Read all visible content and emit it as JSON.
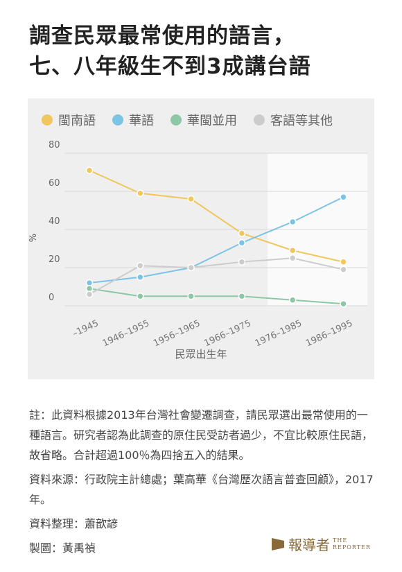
{
  "title_lines": [
    "調查民眾最常使用的語言，",
    "七、八年級生不到3成講台語"
  ],
  "chart_data": {
    "type": "line",
    "x_label": "民眾出生年",
    "y_label": "%",
    "categories": [
      "–1945",
      "1946–1955",
      "1956–1965",
      "1966–1975",
      "1976–1985",
      "1986–1995"
    ],
    "series": [
      {
        "name": "閩南語",
        "color": "#f0c75e",
        "values": [
          71,
          59,
          56,
          38,
          29,
          23
        ]
      },
      {
        "name": "華語",
        "color": "#7cc3e6",
        "values": [
          12,
          15,
          20,
          33,
          44,
          57
        ]
      },
      {
        "name": "華閩並用",
        "color": "#8dc7a5",
        "values": [
          9,
          5,
          5,
          5,
          3,
          1
        ]
      },
      {
        "name": "客語等其他",
        "color": "#cccccc",
        "values": [
          6,
          21,
          20,
          23,
          25,
          19
        ]
      }
    ],
    "ylim": [
      0,
      80
    ],
    "yticks": [
      0,
      20,
      40,
      60,
      80
    ],
    "grid": true
  },
  "notes": [
    "註：此資料根據2013年台灣社會變遷調查，請民眾選出最常使用的一種語言。研究者認為此調查的原住民受訪者過少，不宜比較原住民語，故省略。合計超過100％為四捨五入的結果。",
    "資料來源：行政院主計總處；葉高華《台灣歷次語言普查回顧》，2017年。",
    "資料整理：蕭歆諺",
    "製圖：黃禹禎"
  ],
  "logo": {
    "zh": "報導者",
    "en_1": "THE",
    "en_2": "REPORTER"
  }
}
